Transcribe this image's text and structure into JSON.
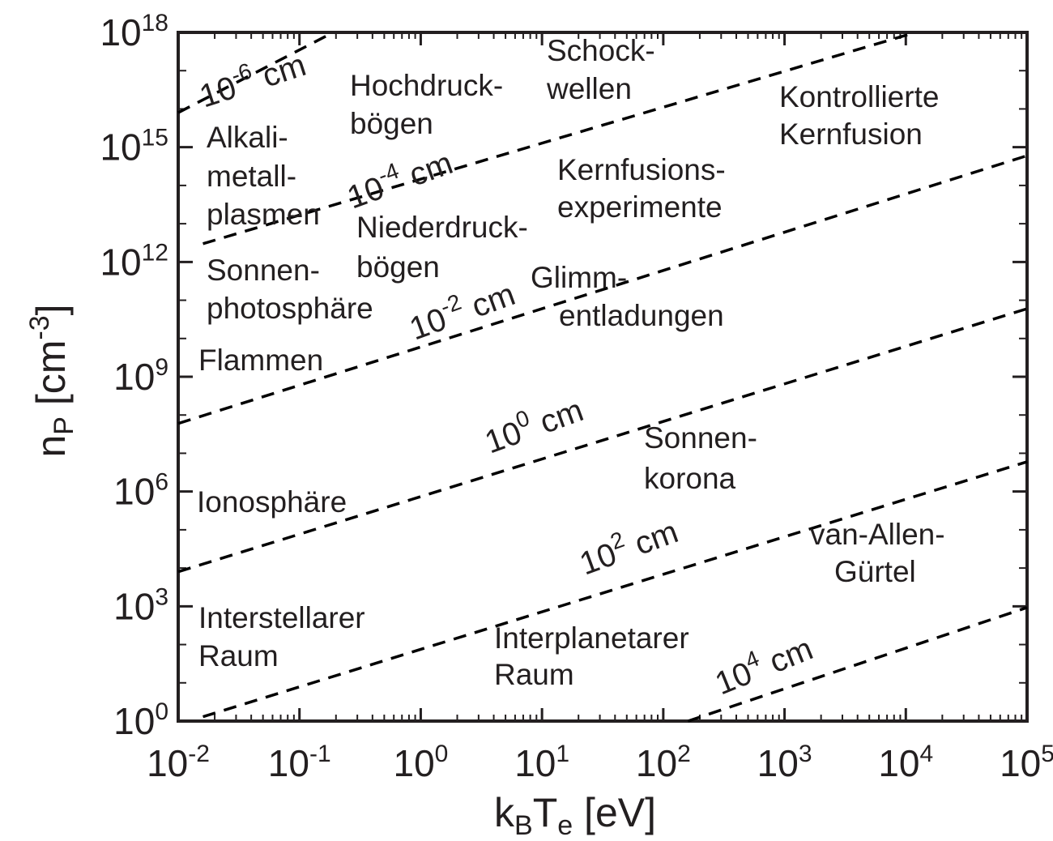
{
  "chart_data": {
    "type": "line",
    "x_scale": "log",
    "y_scale": "log",
    "xlim": [
      0.01,
      100000
    ],
    "ylim": [
      1,
      1e+18
    ],
    "xticks": [
      {
        "value": 0.01,
        "label": "10",
        "exponent": "-2"
      },
      {
        "value": 0.1,
        "label": "10",
        "exponent": "-1"
      },
      {
        "value": 1,
        "label": "10",
        "exponent": "0"
      },
      {
        "value": 10,
        "label": "10",
        "exponent": "1"
      },
      {
        "value": 100,
        "label": "10",
        "exponent": "2"
      },
      {
        "value": 1000,
        "label": "10",
        "exponent": "3"
      },
      {
        "value": 10000,
        "label": "10",
        "exponent": "4"
      },
      {
        "value": 100000,
        "label": "10",
        "exponent": "5"
      }
    ],
    "yticks": [
      {
        "value": 1,
        "label": "10",
        "exponent": "0"
      },
      {
        "value": 1000,
        "label": "10",
        "exponent": "3"
      },
      {
        "value": 1000000,
        "label": "10",
        "exponent": "6"
      },
      {
        "value": 1000000000,
        "label": "10",
        "exponent": "9"
      },
      {
        "value": 1000000000000.0,
        "label": "10",
        "exponent": "12"
      },
      {
        "value": 1000000000000000.0,
        "label": "10",
        "exponent": "15"
      },
      {
        "value": 1e+18,
        "label": "10",
        "exponent": "18"
      }
    ],
    "x_label": [
      {
        "text": "k"
      },
      {
        "text": "B",
        "sub": true
      },
      {
        "text": "T"
      },
      {
        "text": "e",
        "sub": true
      },
      {
        "text": " [eV]"
      }
    ],
    "y_label": [
      {
        "text": "n"
      },
      {
        "text": "P",
        "sub": true
      },
      {
        "text": " [cm"
      },
      {
        "text": "-3",
        "sup": true
      },
      {
        "text": "]"
      }
    ],
    "color": "#000000",
    "lines": [
      {
        "label": "10",
        "exponent": "-6",
        "unit": "cm",
        "x": [
          0.01,
          0.19
        ],
        "y": [
          8000000000000000.0,
          1e+18
        ]
      },
      {
        "label": "10",
        "exponent": "-4",
        "unit": "cm",
        "x": [
          0.016,
          12000
        ],
        "y": [
          3000000000000.0,
          1e+18
        ]
      },
      {
        "label": "10",
        "exponent": "-2",
        "unit": "cm",
        "x": [
          0.01,
          100000
        ],
        "y": [
          60000000.0,
          600000000000000.0
        ]
      },
      {
        "label": "10",
        "exponent": "0",
        "unit": "cm",
        "x": [
          0.01,
          100000
        ],
        "y": [
          8000,
          60000000000.0
        ]
      },
      {
        "label": "10",
        "exponent": "2",
        "unit": "cm",
        "x": [
          0.016,
          100000
        ],
        "y": [
          1.3,
          6000000
        ]
      },
      {
        "label": "10",
        "exponent": "4",
        "unit": "cm",
        "x": [
          160,
          100000
        ],
        "y": [
          1,
          930
        ]
      }
    ],
    "regions": [
      [
        "Schock-",
        "wellen"
      ],
      [
        "Hochdruck-",
        "bögen"
      ],
      [
        "Kontrollierte",
        "Kernfusion"
      ],
      [
        "Alkali-",
        "metall-",
        "plasmen"
      ],
      [
        "Kernfusions-",
        "experimente"
      ],
      [
        "Niederdruck-",
        "bögen"
      ],
      [
        "Sonnen-",
        "photosphäre"
      ],
      [
        "Glimm-",
        "entladungen"
      ],
      [
        "Flammen"
      ],
      [
        "Sonnen-",
        "korona"
      ],
      [
        "Ionosphäre"
      ],
      [
        "van-Allen-",
        "Gürtel"
      ],
      [
        "Interstellarer",
        "Raum"
      ],
      [
        "Interplanetarer",
        "Raum"
      ]
    ]
  }
}
